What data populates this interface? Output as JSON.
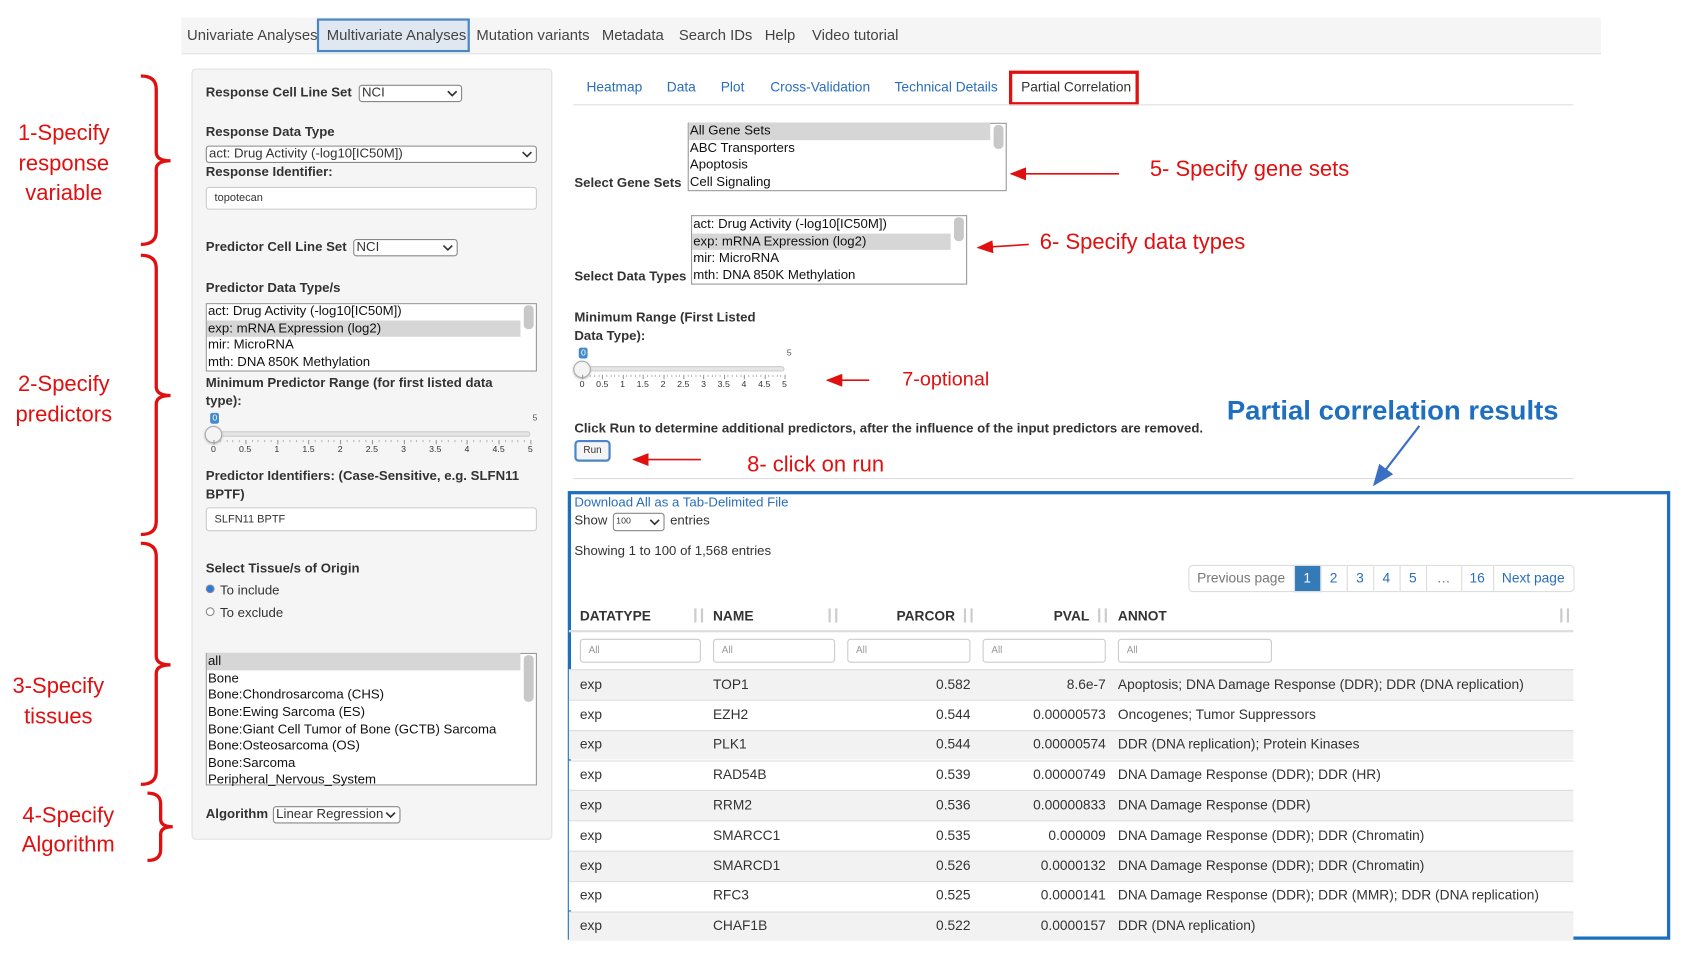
{
  "nav": {
    "tabs": [
      "Univariate Analyses",
      "Multivariate Analyses",
      "Mutation variants",
      "Metadata",
      "Search IDs",
      "Help",
      "Video tutorial"
    ],
    "active": 1
  },
  "sidebar": {
    "response_cell_line_set": {
      "label": "Response Cell Line Set",
      "value": "NCI"
    },
    "response_data_type": {
      "label": "Response Data Type",
      "value": "act: Drug Activity (-log10[IC50M])"
    },
    "response_identifier": {
      "label": "Response Identifier:",
      "value": "topotecan"
    },
    "predictor_cell_line_set": {
      "label": "Predictor Cell Line Set",
      "value": "NCI"
    },
    "predictor_data_types": {
      "label": "Predictor Data Type/s",
      "options": [
        "act: Drug Activity (-log10[IC50M])",
        "exp: mRNA Expression (log2)",
        "mir: MicroRNA",
        "mth: DNA 850K Methylation"
      ],
      "selected": 1
    },
    "min_predictor_range": {
      "label": "Minimum Predictor Range (for first listed data type):",
      "value": "0",
      "max": "5",
      "ticks": [
        "0",
        "0.5",
        "1",
        "1.5",
        "2",
        "2.5",
        "3",
        "3.5",
        "4",
        "4.5",
        "5"
      ]
    },
    "predictor_identifiers": {
      "label": "Predictor Identifiers: (Case-Sensitive, e.g. SLFN11 BPTF)",
      "value": "SLFN11 BPTF"
    },
    "tissue": {
      "label": "Select Tissue/s of Origin",
      "radios": [
        "To include",
        "To exclude"
      ],
      "checked": 0,
      "options": [
        "all",
        "Bone",
        "Bone:Chondrosarcoma (CHS)",
        "Bone:Ewing Sarcoma (ES)",
        "Bone:Giant Cell Tumor of Bone (GCTB) Sarcoma",
        "Bone:Osteosarcoma (OS)",
        "Bone:Sarcoma",
        "Peripheral_Nervous_System"
      ],
      "selected": 0
    },
    "algorithm": {
      "label": "Algorithm",
      "value": "Linear Regression"
    }
  },
  "annotations": {
    "response": [
      "1-Specify",
      "response",
      "variable"
    ],
    "predictors": [
      "2-Specify",
      "predictors"
    ],
    "tissues": [
      "3-Specify",
      "tissues"
    ],
    "algorithm": [
      "4-Specify",
      "Algorithm"
    ],
    "gene_sets": "5- Specify gene sets",
    "data_types": "6- Specify data types",
    "optional": "7-optional",
    "run": "8- click on run",
    "results": "Partial correlation results"
  },
  "main": {
    "tabs": [
      "Heatmap",
      "Data",
      "Plot",
      "Cross-Validation",
      "Technical Details",
      "Partial Correlation"
    ],
    "active": 5,
    "gene_sets": {
      "label": "Select Gene Sets",
      "options": [
        "All Gene Sets",
        "ABC Transporters",
        "Apoptosis",
        "Cell Signaling"
      ],
      "selected": 0
    },
    "data_types": {
      "label": "Select Data Types",
      "options": [
        "act: Drug Activity (-log10[IC50M])",
        "exp: mRNA Expression (log2)",
        "mir: MicroRNA",
        "mth: DNA 850K Methylation"
      ],
      "selected": 1
    },
    "min_range": {
      "label": "Minimum Range (First Listed Data Type):",
      "value": "0",
      "max": "5",
      "ticks": [
        "0",
        "0.5",
        "1",
        "1.5",
        "2",
        "2.5",
        "3",
        "3.5",
        "4",
        "4.5",
        "5"
      ]
    },
    "run": {
      "text": "Click Run to determine additional predictors, after the influence of the input predictors are removed.",
      "button": "Run"
    },
    "results": {
      "download": "Download All as a Tab-Delimited File",
      "show": "Show",
      "page_length": "100",
      "entries": "entries",
      "info": "Showing 1 to 100 of 1,568 entries",
      "pagination": [
        "Previous page",
        "1",
        "2",
        "3",
        "4",
        "5",
        "…",
        "16",
        "Next page"
      ],
      "active_page": 1,
      "columns": [
        "DATATYPE",
        "NAME",
        "PARCOR",
        "PVAL",
        "ANNOT"
      ],
      "filter": "All",
      "rows": [
        [
          "exp",
          "TOP1",
          "0.582",
          "8.6e-7",
          "Apoptosis; DNA Damage Response (DDR); DDR (DNA replication)"
        ],
        [
          "exp",
          "EZH2",
          "0.544",
          "0.00000573",
          "Oncogenes; Tumor Suppressors"
        ],
        [
          "exp",
          "PLK1",
          "0.544",
          "0.00000574",
          "DDR (DNA replication); Protein Kinases"
        ],
        [
          "exp",
          "RAD54B",
          "0.539",
          "0.00000749",
          "DNA Damage Response (DDR); DDR (HR)"
        ],
        [
          "exp",
          "RRM2",
          "0.536",
          "0.00000833",
          "DNA Damage Response (DDR)"
        ],
        [
          "exp",
          "SMARCC1",
          "0.535",
          "0.000009",
          "DNA Damage Response (DDR); DDR (Chromatin)"
        ],
        [
          "exp",
          "SMARCD1",
          "0.526",
          "0.0000132",
          "DNA Damage Response (DDR); DDR (Chromatin)"
        ],
        [
          "exp",
          "RFC3",
          "0.525",
          "0.0000141",
          "DNA Damage Response (DDR); DDR (MMR); DDR (DNA replication)"
        ],
        [
          "exp",
          "CHAF1B",
          "0.522",
          "0.0000157",
          "DDR (DNA replication)"
        ]
      ]
    }
  }
}
